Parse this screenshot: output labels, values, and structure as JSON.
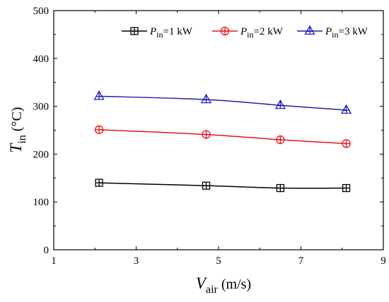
{
  "chart_data": {
    "type": "line",
    "xlabel": {
      "main": "V",
      "sub": "air",
      "unit": " (m/s)"
    },
    "ylabel": {
      "main": "T",
      "sub": "in",
      "unit": " (°C)"
    },
    "xlim": [
      1,
      9
    ],
    "ylim": [
      0,
      500
    ],
    "xticks": [
      1,
      3,
      5,
      7,
      9
    ],
    "yticks": [
      0,
      100,
      200,
      300,
      400,
      500
    ],
    "grid": false,
    "legend_position": "top",
    "series": [
      {
        "name": "Pin=1 kW",
        "label": {
          "main": "P",
          "sub": "in",
          "rest": "=1 kW"
        },
        "color": "#000000",
        "marker": "square-cross",
        "x": [
          2.1,
          4.7,
          6.5,
          8.1
        ],
        "y": [
          140,
          134,
          129,
          129
        ]
      },
      {
        "name": "Pin=2 kW",
        "label": {
          "main": "P",
          "sub": "in",
          "rest": "=2 kW"
        },
        "color": "#e8141a",
        "marker": "circle-cross",
        "x": [
          2.1,
          4.7,
          6.5,
          8.1
        ],
        "y": [
          251,
          241,
          230,
          222
        ]
      },
      {
        "name": "Pin=3 kW",
        "label": {
          "main": "P",
          "sub": "in",
          "rest": "=3 kW"
        },
        "color": "#1f1fb4",
        "marker": "triangle-cross",
        "x": [
          2.1,
          4.7,
          6.5,
          8.1
        ],
        "y": [
          321,
          314,
          302,
          292
        ]
      }
    ]
  }
}
